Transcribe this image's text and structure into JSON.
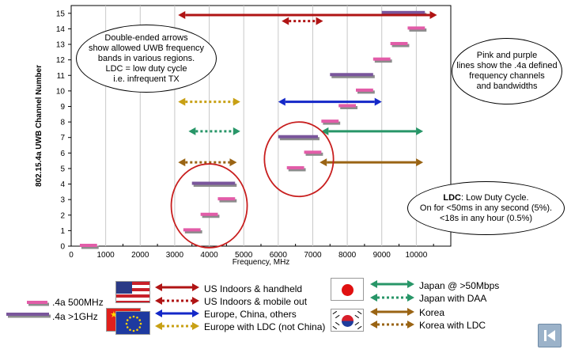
{
  "chart_data": {
    "type": "range-bar",
    "xlabel": "Frequency, MHz",
    "ylabel": "802.15.4a UWB Channel Number",
    "xlim": [
      0,
      11000
    ],
    "ylim": [
      0,
      15.5
    ],
    "xticks": [
      0,
      1000,
      2000,
      3000,
      4000,
      5000,
      6000,
      7000,
      8000,
      9000,
      10000
    ],
    "yticks": [
      0,
      1,
      2,
      3,
      4,
      5,
      6,
      7,
      8,
      9,
      10,
      11,
      12,
      13,
      14,
      15
    ],
    "grid": "vertical",
    "channels_500mhz": [
      {
        "channel": 0,
        "from": 250,
        "to": 750
      },
      {
        "channel": 1,
        "from": 3250,
        "to": 3750
      },
      {
        "channel": 2,
        "from": 3750,
        "to": 4250
      },
      {
        "channel": 3,
        "from": 4250,
        "to": 4750
      },
      {
        "channel": 5,
        "from": 6250,
        "to": 6750
      },
      {
        "channel": 6,
        "from": 6750,
        "to": 7250
      },
      {
        "channel": 8,
        "from": 7250,
        "to": 7750
      },
      {
        "channel": 9,
        "from": 7750,
        "to": 8250
      },
      {
        "channel": 10,
        "from": 8250,
        "to": 8750
      },
      {
        "channel": 12,
        "from": 8750,
        "to": 9250
      },
      {
        "channel": 13,
        "from": 9250,
        "to": 9750
      },
      {
        "channel": 14,
        "from": 9750,
        "to": 10250
      }
    ],
    "channels_1ghz": [
      {
        "channel": 4,
        "from": 3500,
        "to": 4750
      },
      {
        "channel": 7,
        "from": 6000,
        "to": 7150
      },
      {
        "channel": 11,
        "from": 7500,
        "to": 8750
      },
      {
        "channel": 15,
        "from": 9000,
        "to": 10250
      }
    ],
    "regions": [
      {
        "name": "US Indoors & handheld",
        "color": "#b01414",
        "style": "solid",
        "from": 3100,
        "to": 10600,
        "y": 15.5
      },
      {
        "name": "US Indoors & mobile out",
        "color": "#b01414",
        "style": "dotted",
        "from": 6100,
        "to": 7300,
        "y": 14.5
      },
      {
        "name": "Europe, China, others",
        "color": "#1428c8",
        "style": "solid",
        "from": 6000,
        "to": 9000,
        "y": 9.3
      },
      {
        "name": "Europe with LDC (not China)",
        "color": "#c8a014",
        "style": "dotted",
        "from": 3100,
        "to": 4900,
        "y": 9.3
      },
      {
        "name": "Japan @ >50Mbps",
        "color": "#289668",
        "style": "solid",
        "from": 7250,
        "to": 10200,
        "y": 7.4
      },
      {
        "name": "Japan with DAA",
        "color": "#289668",
        "style": "dotted",
        "from": 3400,
        "to": 4900,
        "y": 7.4
      },
      {
        "name": "Korea",
        "color": "#9a6414",
        "style": "solid",
        "from": 7200,
        "to": 10200,
        "y": 5.4
      },
      {
        "name": "Korea with LDC",
        "color": "#9a6414",
        "style": "dotted",
        "from": 3100,
        "to": 4800,
        "y": 5.4
      }
    ],
    "highlight_circles": [
      {
        "cx": 4000,
        "cy": 2.6,
        "rx": 1100,
        "ry": 2.7
      },
      {
        "cx": 6600,
        "cy": 5.6,
        "rx": 1000,
        "ry": 2.4
      }
    ]
  },
  "notes": {
    "arrows": [
      "Double-ended arrows",
      "show allowed UWB frequency",
      "bands in various regions.",
      "LDC = low duty cycle",
      "i.e. infrequent TX"
    ],
    "lines": [
      "Pink and purple",
      "lines show the .4a defined",
      "frequency channels",
      "and bandwidths"
    ],
    "ldc_title": "LDC",
    "ldc_title_rest": ": Low Duty Cycle.",
    "ldc_lines": [
      "On for <50ms in any second (5%).",
      "<18s in any hour (0.5%)"
    ]
  },
  "legend": {
    "bar_500": ".4a 500MHz",
    "bar_1g": ".4a >1GHz"
  },
  "colors": {
    "pink": "#e25ca8",
    "purple": "#7a569c",
    "circle": "#c81e1e"
  }
}
